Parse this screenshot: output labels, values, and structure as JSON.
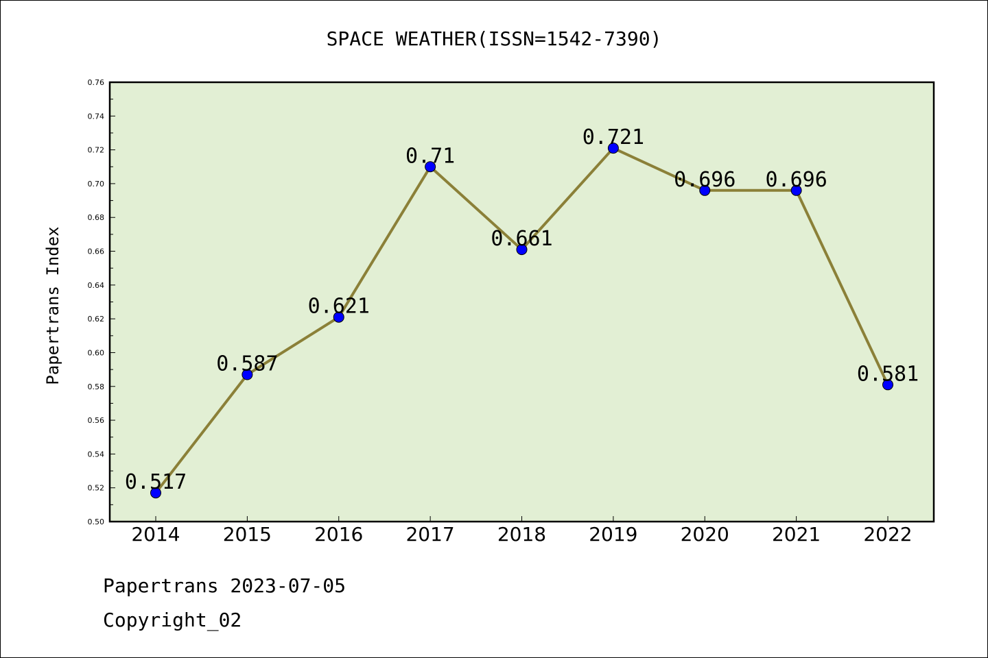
{
  "chart_data": {
    "type": "line",
    "title": "SPACE WEATHER(ISSN=1542-7390)",
    "xlabel": "",
    "ylabel": "Papertrans Index",
    "categories": [
      "2014",
      "2015",
      "2016",
      "2017",
      "2018",
      "2019",
      "2020",
      "2021",
      "2022"
    ],
    "values": [
      0.517,
      0.587,
      0.621,
      0.71,
      0.661,
      0.721,
      0.696,
      0.696,
      0.581
    ],
    "data_labels": [
      "0.517",
      "0.587",
      "0.621",
      "0.71",
      "0.661",
      "0.721",
      "0.696",
      "0.696",
      "0.581"
    ],
    "ylim": [
      0.5,
      0.76
    ],
    "yticks": [
      "0.50",
      "0.52",
      "0.54",
      "0.56",
      "0.58",
      "0.60",
      "0.62",
      "0.64",
      "0.66",
      "0.68",
      "0.70",
      "0.72",
      "0.74",
      "0.76"
    ],
    "grid": false,
    "colors": {
      "plot_background": "#e2efd4",
      "line": "#8b8038",
      "marker": "#0000ff"
    }
  },
  "footer": {
    "line1": "Papertrans 2023-07-05",
    "line2": "Copyright_02"
  }
}
